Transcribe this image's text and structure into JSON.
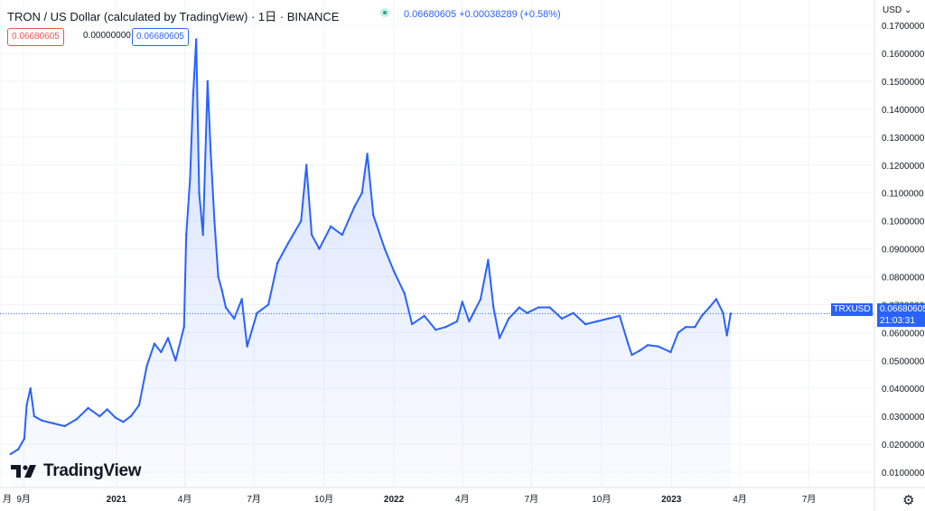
{
  "header": {
    "title": "TRON / US Dollar (calculated by TradingView) · 1日 · BINANCE",
    "quote": "0.06680605 +0.00038289 (+0.58%)",
    "chip_red": "0.06680605",
    "chip_plain": "0.00000000",
    "chip_blue": "0.06680605"
  },
  "axis": {
    "currency": "USD ⌄"
  },
  "last_price": {
    "symbol": "TRXUSD",
    "value": "0.06680605",
    "countdown": "21:03:31"
  },
  "brand": {
    "name": "TradingView"
  },
  "icons": {
    "settings": "gear-icon",
    "logo": "tradingview-logo-icon"
  },
  "colors": {
    "line": "#2962ff",
    "area": "#2962ff",
    "grid": "#f0f3fa",
    "text": "#131722"
  },
  "chart_data": {
    "type": "area",
    "title": "TRON / US Dollar (calculated by TradingView) · 1日 · BINANCE",
    "xlabel": "",
    "ylabel": "",
    "ylim": [
      0.0045,
      0.172
    ],
    "grid": true,
    "y_ticks": [
      "0.1700000",
      "0.1600000",
      "0.1500000",
      "0.1400000",
      "0.1300000",
      "0.1200000",
      "0.1100000",
      "0.1000000",
      "0.0900000",
      "0.0800000",
      "0.0700000",
      "0.0600000",
      "0.0500000",
      "0.0400000",
      "0.0300000",
      "0.0200000",
      "0.0100000"
    ],
    "x_ticks": [
      "月",
      "9月",
      "2021",
      "4月",
      "7月",
      "10月",
      "2022",
      "4月",
      "7月",
      "10月",
      "2023",
      "4月",
      "7月"
    ],
    "x": [
      "2020-08-15",
      "2020-08-25",
      "2020-09-02",
      "2020-09-05",
      "2020-09-10",
      "2020-09-15",
      "2020-09-25",
      "2020-10-10",
      "2020-10-25",
      "2020-11-10",
      "2020-11-25",
      "2020-12-10",
      "2020-12-20",
      "2020-12-31",
      "2021-01-10",
      "2021-01-20",
      "2021-01-31",
      "2021-02-10",
      "2021-02-20",
      "2021-03-01",
      "2021-03-10",
      "2021-03-20",
      "2021-03-31",
      "2021-04-03",
      "2021-04-08",
      "2021-04-12",
      "2021-04-16",
      "2021-04-20",
      "2021-04-25",
      "2021-05-01",
      "2021-05-05",
      "2021-05-10",
      "2021-05-15",
      "2021-05-20",
      "2021-05-25",
      "2021-06-05",
      "2021-06-15",
      "2021-06-22",
      "2021-07-05",
      "2021-07-20",
      "2021-08-01",
      "2021-08-15",
      "2021-09-01",
      "2021-09-08",
      "2021-09-15",
      "2021-09-25",
      "2021-10-10",
      "2021-10-25",
      "2021-11-10",
      "2021-11-20",
      "2021-11-27",
      "2021-12-05",
      "2021-12-20",
      "2022-01-01",
      "2022-01-15",
      "2022-01-25",
      "2022-02-10",
      "2022-02-25",
      "2022-03-10",
      "2022-03-25",
      "2022-04-01",
      "2022-04-10",
      "2022-04-25",
      "2022-05-05",
      "2022-05-12",
      "2022-05-20",
      "2022-06-01",
      "2022-06-15",
      "2022-06-25",
      "2022-07-10",
      "2022-07-25",
      "2022-08-10",
      "2022-08-25",
      "2022-09-10",
      "2022-09-25",
      "2022-10-10",
      "2022-10-25",
      "2022-11-05",
      "2022-11-10",
      "2022-11-20",
      "2022-12-01",
      "2022-12-15",
      "2022-12-31",
      "2023-01-10",
      "2023-01-20",
      "2023-02-01",
      "2023-02-10",
      "2023-02-20",
      "2023-03-01",
      "2023-03-10",
      "2023-03-15",
      "2023-03-20"
    ],
    "series": [
      {
        "values": [
          0.0165,
          0.0182,
          0.022,
          0.034,
          0.04,
          0.03,
          0.0285,
          0.0275,
          0.0265,
          0.029,
          0.033,
          0.03,
          0.0325,
          0.0295,
          0.028,
          0.03,
          0.034,
          0.048,
          0.056,
          0.053,
          0.058,
          0.05,
          0.062,
          0.095,
          0.115,
          0.145,
          0.165,
          0.11,
          0.095,
          0.15,
          0.125,
          0.1,
          0.08,
          0.075,
          0.069,
          0.065,
          0.072,
          0.055,
          0.067,
          0.07,
          0.085,
          0.092,
          0.1,
          0.12,
          0.095,
          0.09,
          0.098,
          0.095,
          0.105,
          0.11,
          0.124,
          0.102,
          0.09,
          0.082,
          0.074,
          0.063,
          0.066,
          0.061,
          0.062,
          0.064,
          0.071,
          0.064,
          0.072,
          0.086,
          0.069,
          0.058,
          0.065,
          0.069,
          0.067,
          0.069,
          0.069,
          0.065,
          0.067,
          0.063,
          0.064,
          0.065,
          0.066,
          0.056,
          0.052,
          0.0535,
          0.0555,
          0.055,
          0.053,
          0.06,
          0.062,
          0.062,
          0.066,
          0.069,
          0.072,
          0.067,
          0.059,
          0.0668
        ]
      }
    ]
  }
}
